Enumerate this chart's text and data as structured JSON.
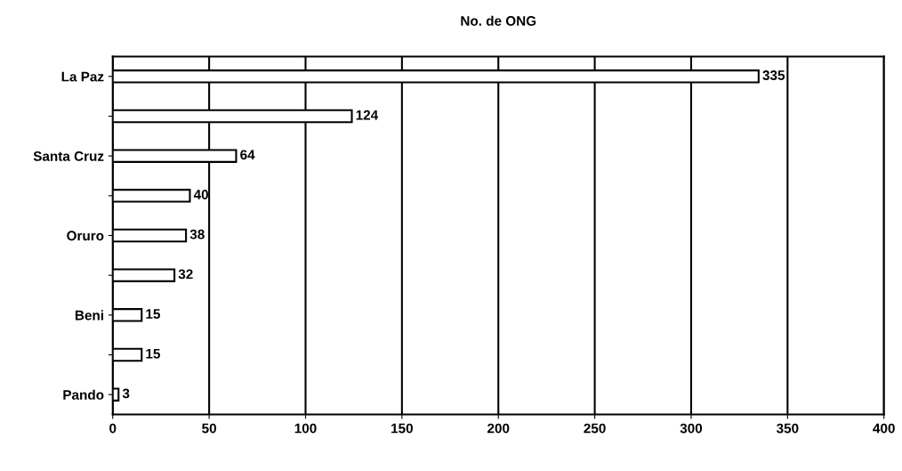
{
  "chart_data": {
    "type": "bar",
    "orientation": "horizontal",
    "title": "No. de ONG",
    "categories": [
      "La Paz",
      null,
      "Santa Cruz",
      null,
      "Oruro",
      null,
      "Beni",
      null,
      "Pando"
    ],
    "values": [
      335,
      124,
      64,
      40,
      38,
      32,
      15,
      15,
      3
    ],
    "color": "#ffffff",
    "data_labels": true,
    "grid": "x",
    "xlim": [
      0,
      400
    ],
    "xticks": [
      0,
      50,
      100,
      150,
      200,
      250,
      300,
      350,
      400
    ]
  }
}
